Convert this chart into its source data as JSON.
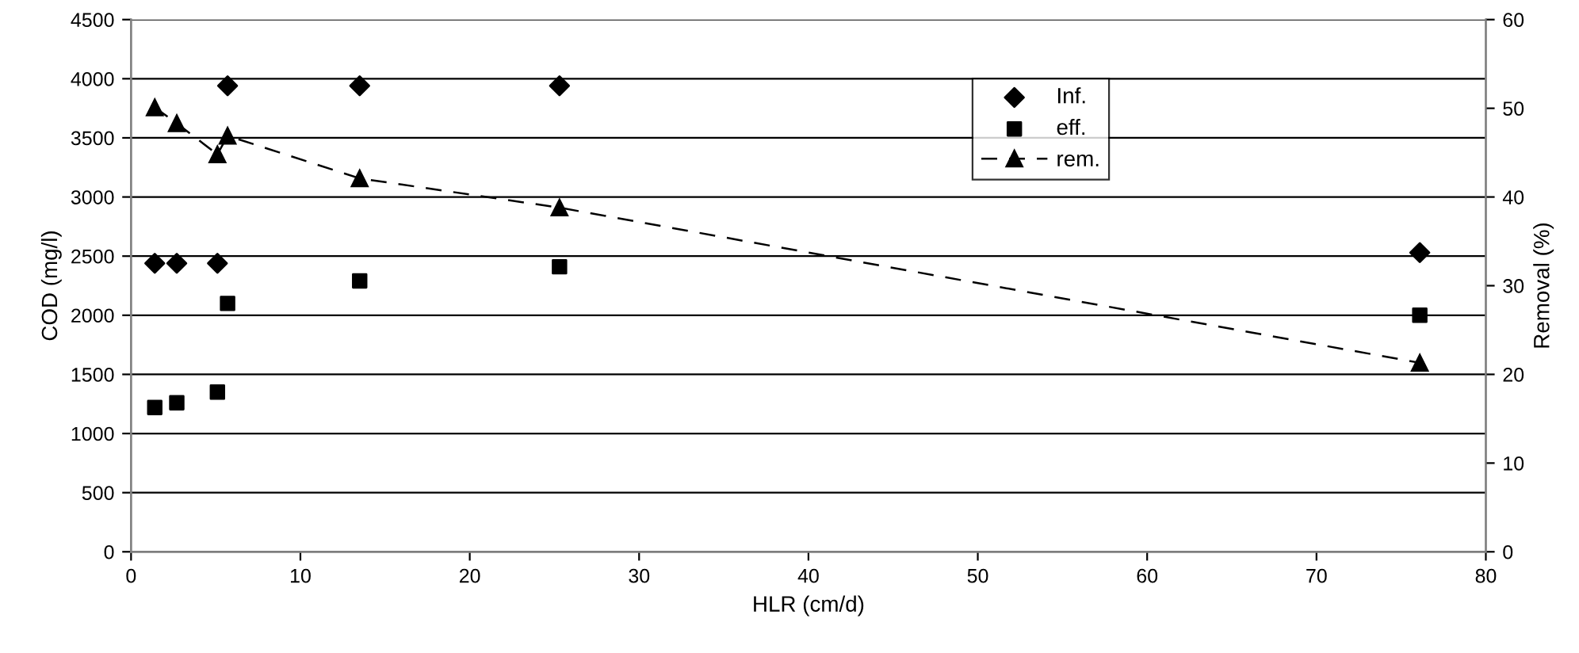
{
  "chart_data": {
    "type": "scatter",
    "xlabel": "HLR (cm/d)",
    "ylabel": "COD (mg/l)",
    "y2label": "Removal (%)",
    "x": [
      1.4,
      2.7,
      5.1,
      5.7,
      13.5,
      25.3,
      76.1
    ],
    "xlim": [
      0,
      80
    ],
    "xticks": [
      0,
      10,
      20,
      30,
      40,
      50,
      60,
      70,
      80
    ],
    "ylim": [
      0,
      4500
    ],
    "yticks": [
      0,
      500,
      1000,
      1500,
      2000,
      2500,
      3000,
      3500,
      4000,
      4500
    ],
    "y2lim": [
      0,
      60
    ],
    "y2ticks": [
      0,
      10,
      20,
      30,
      40,
      50,
      60
    ],
    "grid": "y",
    "legend": "top right",
    "series": [
      {
        "name": "Inf.",
        "color": "#000000",
        "marker": "diamond",
        "values": [
          2440,
          2440,
          2440,
          3940,
          3940,
          3940,
          2530
        ]
      },
      {
        "name": "eff.",
        "color": "#000000",
        "marker": "square",
        "values": [
          1220,
          1260,
          1350,
          2100,
          2290,
          2410,
          2000
        ]
      },
      {
        "name": "rem.",
        "color": "#000000",
        "type": "line",
        "marker": "triangle",
        "line_style": "dashed",
        "axis": "y2",
        "values": [
          50.1,
          48.3,
          44.8,
          46.9,
          42.1,
          38.8,
          21.3
        ]
      }
    ]
  }
}
